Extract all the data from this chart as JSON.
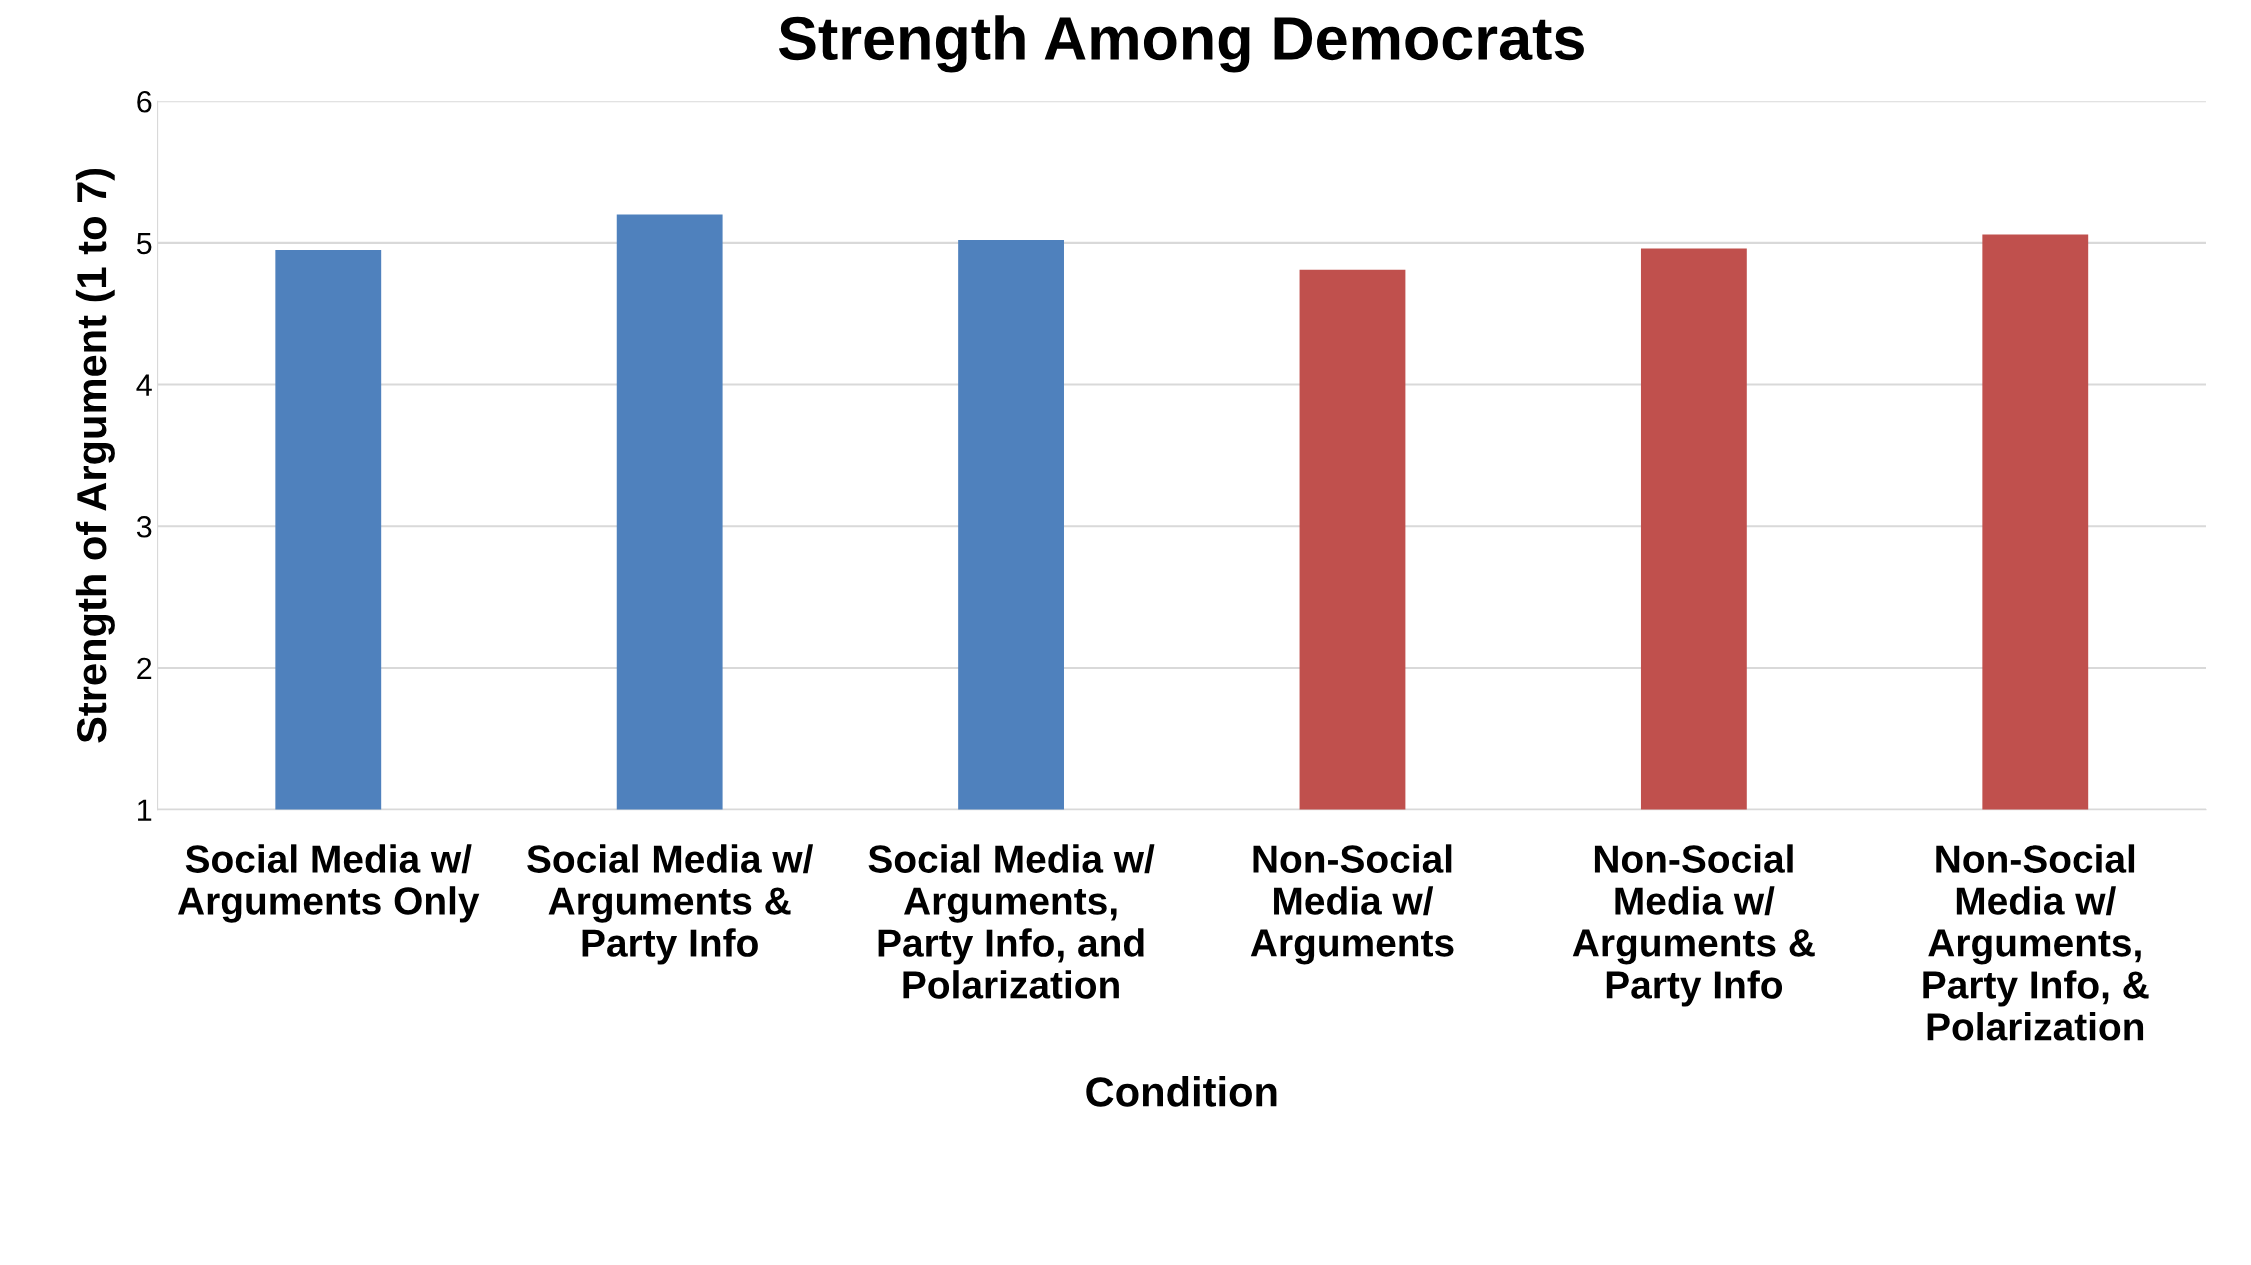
{
  "chart_data": {
    "type": "bar",
    "title": "Strength Among Democrats",
    "xlabel": "Condition",
    "ylabel": "Strength of Argument (1 to 7)",
    "categories": [
      "Social Media w/\nArguments Only",
      "Social Media w/\nArguments &\nParty Info",
      "Social Media w/\nArguments,\nParty Info, and\nPolarization",
      "Non-Social\nMedia w/\nArguments",
      "Non-Social\nMedia w/\nArguments &\nParty Info",
      "Non-Social\nMedia w/\nArguments,\nParty Info, &\nPolarization"
    ],
    "values": [
      4.95,
      5.2,
      5.02,
      4.81,
      4.96,
      5.06
    ],
    "colors": [
      "#4f81bd",
      "#4f81bd",
      "#4f81bd",
      "#c0504d",
      "#c0504d",
      "#c0504d"
    ],
    "ylim": [
      1,
      6
    ],
    "yticks": [
      1,
      2,
      3,
      4,
      5,
      6
    ],
    "grid": "y",
    "legend": false
  }
}
